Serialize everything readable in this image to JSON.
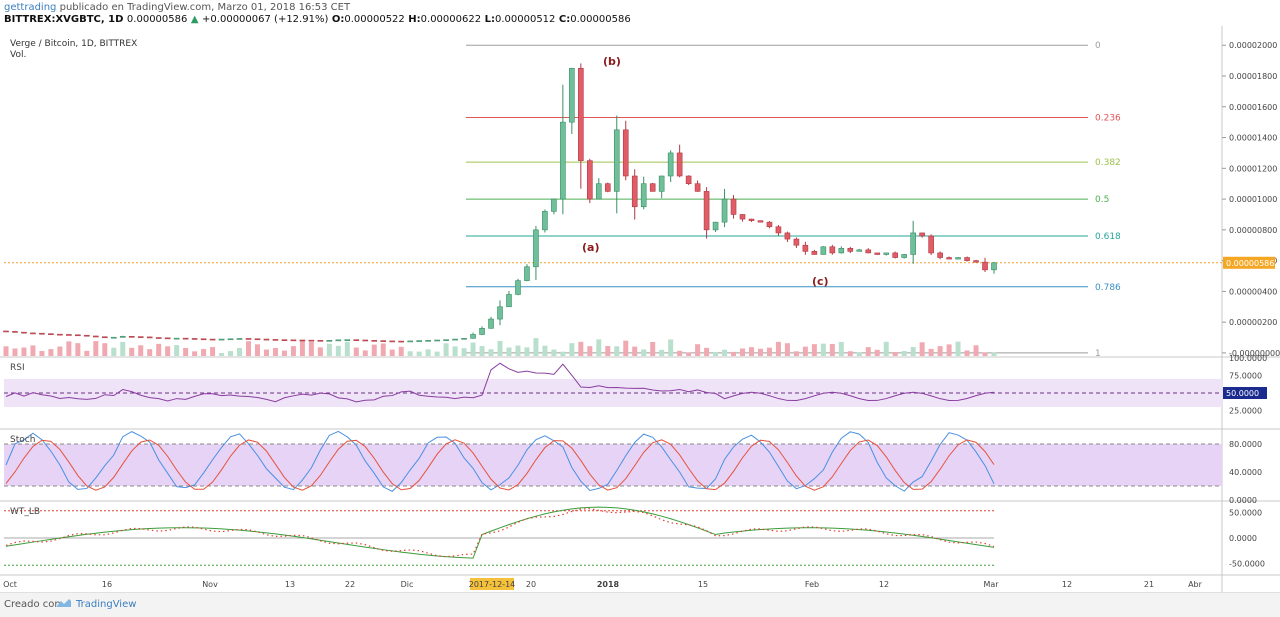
{
  "header": {
    "user": "gettrading",
    "published": "publicado en TradingView.com, Marzo 01, 2018 16:53 CET",
    "symbol": "BITTREX:XVGBTC, 1D",
    "last": "0.00000586",
    "change": "+0.00000067 (+12.91%)",
    "o_label": "O:",
    "o": "0.00000522",
    "h_label": "H:",
    "h": "0.00000622",
    "l_label": "L:",
    "l": "0.00000512",
    "c_label": "C:",
    "c": "0.00000586"
  },
  "main_pane": {
    "title": "Verge / Bitcoin, 1D, BITTREX",
    "vol_label": "Vol.",
    "price_ticks": [
      "0.00002000",
      "0.00001800",
      "0.00001600",
      "0.00001400",
      "0.00001200",
      "0.00001000",
      "0.00000800",
      "0.00000600",
      "0.00000400",
      "0.00000200",
      "-0.00000000"
    ],
    "last_price_tag": "0.00000586",
    "fib_levels": [
      {
        "label": "0",
        "color": "#9e9e9e"
      },
      {
        "label": "0.236",
        "color": "#e05555"
      },
      {
        "label": "0.382",
        "color": "#9cc24a"
      },
      {
        "label": "0.5",
        "color": "#4caf50"
      },
      {
        "label": "0.618",
        "color": "#26a69a"
      },
      {
        "label": "0.786",
        "color": "#3a8fc1"
      },
      {
        "label": "1",
        "color": "#9e9e9e"
      }
    ],
    "wave_labels": [
      "(a)",
      "(b)",
      "(c)"
    ]
  },
  "rsi_pane": {
    "title": "RSI",
    "ticks": [
      "100.0000",
      "75.0000",
      "25.0000"
    ],
    "value_tag": "50.0000"
  },
  "stoch_pane": {
    "title": "Stoch",
    "ticks": [
      "80.0000",
      "40.0000",
      "0.0000"
    ]
  },
  "wt_pane": {
    "title": "WT_LB",
    "ticks": [
      "50.0000",
      "0.0000",
      "-50.0000"
    ]
  },
  "x_axis": {
    "ticks": [
      "Oct",
      "16",
      "Nov",
      "13",
      "22",
      "Dic",
      "2017-12-14",
      "20",
      "2018",
      "15",
      "Feb",
      "12",
      "Mar",
      "12",
      "21",
      "Abr"
    ]
  },
  "footer": {
    "made_with": "Creado con",
    "brand": "TradingView"
  },
  "colors": {
    "up": "#6fbf9a",
    "down": "#e05c66",
    "up_vol": "#b9e0cd",
    "down_vol": "#f0a9b0",
    "rsi": "#8a3ea0",
    "stoch_k": "#4a90e2",
    "stoch_d": "#e5533d",
    "wt1": "#3a9d3a",
    "wt2": "#e0402f"
  },
  "chart_data": {
    "type": "candlestick",
    "title": "Verge / Bitcoin, 1D, BITTREX",
    "ylim": [
      -2e-07,
      2.06e-05
    ],
    "series": [
      {
        "name": "XVGBTC",
        "ohlc_daily_close_approx": [
          1.4e-06,
          1.35e-06,
          1.3e-06,
          1.28e-06,
          1.25e-06,
          1.22e-06,
          1.2e-06,
          1.18e-06,
          1.15e-06,
          1.1e-06,
          1.05e-06,
          1e-06,
          1.02e-06,
          1.08e-06,
          1.06e-06,
          1.04e-06,
          1e-06,
          9.8e-07,
          9.5e-07,
          9.6e-07,
          9.4e-07,
          9.2e-07,
          9e-07,
          8.8e-07,
          9e-07,
          9.2e-07,
          9.4e-07,
          9.2e-07,
          9e-07,
          8.8e-07,
          8.6e-07,
          8.5e-07,
          8.4e-07,
          8.3e-07,
          8.2e-07,
          8e-07,
          8.2e-07,
          8.5e-07,
          8.6e-07,
          8.4e-07,
          8.2e-07,
          8e-07,
          7.8e-07,
          7.7e-07,
          7.6e-07,
          7.8e-07,
          8e-07,
          8.2e-07,
          8.4e-07,
          8.6e-07,
          9e-07,
          9.5e-07,
          1.2e-06,
          1.6e-06,
          2.2e-06,
          3e-06,
          3.8e-06,
          4.7e-06,
          5.6e-06,
          8e-06,
          9.2e-06,
          1e-05,
          1.5e-05,
          1.85e-05,
          1.25e-05,
          1e-05,
          1.1e-05,
          1.05e-05,
          1.45e-05,
          1.15e-05,
          9.5e-06,
          1.1e-05,
          1.05e-05,
          1.15e-05,
          1.3e-05,
          1.15e-05,
          1.1e-05,
          1.05e-05,
          8e-06,
          8.5e-06,
          1e-05,
          9e-06,
          8.7e-06,
          8.6e-06,
          8.5e-06,
          8.2e-06,
          7.8e-06,
          7.4e-06,
          7e-06,
          6.6e-06,
          6.4e-06,
          6.9e-06,
          6.5e-06,
          6.8e-06,
          6.6e-06,
          6.7e-06,
          6.5e-06,
          6.4e-06,
          6.5e-06,
          6.2e-06,
          6.4e-06,
          7.8e-06,
          7.6e-06,
          6.5e-06,
          6.2e-06,
          6.1e-06,
          6.2e-06,
          6e-06,
          5.9e-06,
          5.4e-06,
          5.86e-06
        ]
      }
    ],
    "fib_retracement": {
      "0": 2e-05,
      "1": 0.0
    }
  }
}
